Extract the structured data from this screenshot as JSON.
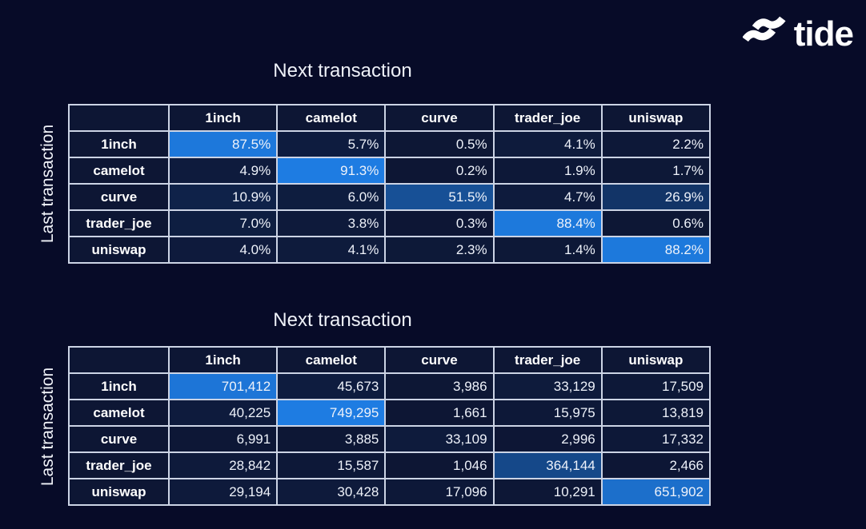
{
  "logo": {
    "text": "tide",
    "icon": "tide-waves-icon"
  },
  "theme": {
    "background": "#070b28",
    "cell_base": "#0d1634",
    "highlight_blue": "#1e7ce2",
    "grid_line": "#ccd4e5",
    "text": "#ffffff"
  },
  "chart_data": [
    {
      "type": "heatmap",
      "title": "Next transaction",
      "xlabel": "Next transaction",
      "ylabel": "Last transaction",
      "columns": [
        "1inch",
        "camelot",
        "curve",
        "trader_joe",
        "uniswap"
      ],
      "rows": [
        "1inch",
        "camelot",
        "curve",
        "trader_joe",
        "uniswap"
      ],
      "values": [
        [
          87.5,
          5.7,
          0.5,
          4.1,
          2.2
        ],
        [
          4.9,
          91.3,
          0.2,
          1.9,
          1.7
        ],
        [
          10.9,
          6.0,
          51.5,
          4.7,
          26.9
        ],
        [
          7.0,
          3.8,
          0.3,
          88.4,
          0.6
        ],
        [
          4.0,
          4.1,
          2.3,
          1.4,
          88.2
        ]
      ],
      "value_format": "percent_1dp",
      "color_scale": {
        "min": 0,
        "max": 91.3,
        "min_color": "#0d1634",
        "max_color": "#1e7ce2"
      },
      "legend": "none",
      "grid": true
    },
    {
      "type": "heatmap",
      "title": "Next transaction",
      "xlabel": "Next transaction",
      "ylabel": "Last transaction",
      "columns": [
        "1inch",
        "camelot",
        "curve",
        "trader_joe",
        "uniswap"
      ],
      "rows": [
        "1inch",
        "camelot",
        "curve",
        "trader_joe",
        "uniswap"
      ],
      "values": [
        [
          701412,
          45673,
          3986,
          33129,
          17509
        ],
        [
          40225,
          749295,
          1661,
          15975,
          13819
        ],
        [
          6991,
          3885,
          33109,
          2996,
          17332
        ],
        [
          28842,
          15587,
          1046,
          364144,
          2466
        ],
        [
          29194,
          30428,
          17096,
          10291,
          651902
        ]
      ],
      "value_format": "thousands_comma",
      "color_scale": {
        "min": 0,
        "max": 749295,
        "min_color": "#0d1634",
        "max_color": "#1e7ce2"
      },
      "legend": "none",
      "grid": true
    }
  ]
}
